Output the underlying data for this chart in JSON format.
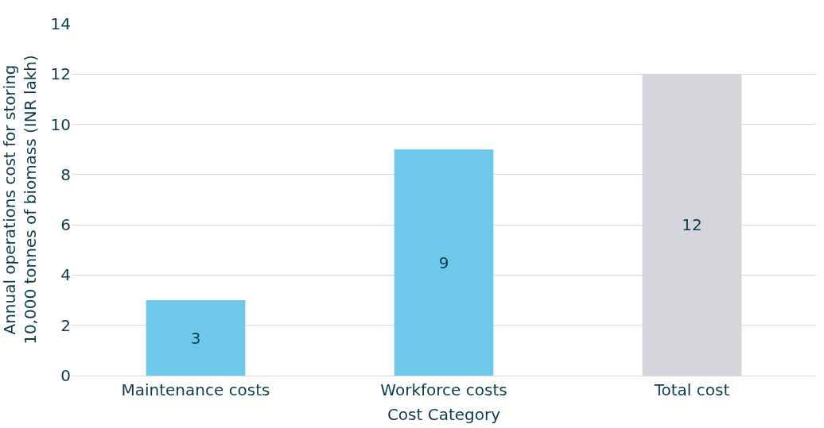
{
  "chart_data": {
    "type": "bar",
    "xlabel": "Cost Category",
    "ylabel": "Annual operations cost for storing 10,000 tonnes of biomass (INR lakh)",
    "categories": [
      "Maintenance costs",
      "Workforce costs",
      "Total cost"
    ],
    "values": [
      3,
      9,
      12
    ],
    "colors": [
      "#6dc8ea",
      "#6dc8ea",
      "#d5d6db"
    ],
    "ylim": [
      0,
      14
    ],
    "yticks": [
      0,
      2,
      4,
      6,
      8,
      10,
      12,
      14
    ],
    "grid": "y",
    "data_labels": true
  }
}
